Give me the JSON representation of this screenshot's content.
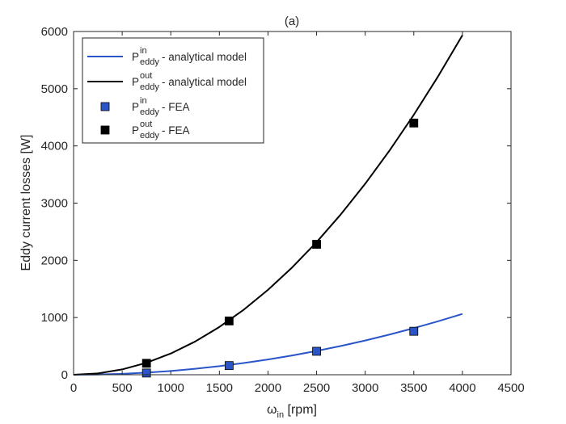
{
  "chart_data": {
    "type": "line",
    "title": "(a)",
    "xlabel": {
      "main": "ω",
      "sub": "in",
      "suffix": " [rpm]"
    },
    "ylabel": "Eddy current losses [W]",
    "xlim": [
      0,
      4500
    ],
    "ylim": [
      0,
      6000
    ],
    "xticks": [
      0,
      500,
      1000,
      1500,
      2000,
      2500,
      3000,
      3500,
      4000,
      4500
    ],
    "yticks": [
      0,
      1000,
      2000,
      3000,
      4000,
      5000,
      6000
    ],
    "xtick_labels": [
      "0",
      "500",
      "1000",
      "1500",
      "2000",
      "2500",
      "3000",
      "3500",
      "4000",
      "4500"
    ],
    "ytick_labels": [
      "0",
      "1000",
      "2000",
      "3000",
      "4000",
      "5000",
      "6000"
    ],
    "grid": false,
    "legend_position": "top-left",
    "series": [
      {
        "name": {
          "main": "P",
          "sup": "in",
          "sub": "eddy",
          "suffix": " - analytical model"
        },
        "kind": "line",
        "color": "#2a55c9",
        "x": [
          0,
          250,
          500,
          750,
          1000,
          1250,
          1500,
          1750,
          2000,
          2250,
          2500,
          2750,
          3000,
          3250,
          3500,
          3750,
          4000
        ],
        "y": [
          0,
          4,
          16,
          37,
          66,
          104,
          150,
          204,
          266,
          337,
          416,
          503,
          598,
          702,
          814,
          934,
          1063
        ]
      },
      {
        "name": {
          "main": "P",
          "sup": "out",
          "sub": "eddy",
          "suffix": " - analytical model"
        },
        "kind": "line",
        "color": "#000000",
        "x": [
          0,
          250,
          500,
          750,
          1000,
          1250,
          1500,
          1750,
          2000,
          2250,
          2500,
          2750,
          3000,
          3250,
          3500,
          3750,
          4000
        ],
        "y": [
          0,
          23,
          93,
          209,
          371,
          580,
          835,
          1136,
          1484,
          1878,
          2318,
          2805,
          3338,
          3918,
          4544,
          5216,
          5935
        ]
      },
      {
        "name": {
          "main": "P",
          "sup": "in",
          "sub": "eddy",
          "suffix": " - FEA"
        },
        "kind": "marker",
        "color": "#2a55c9",
        "x": [
          750,
          1600,
          2500,
          3500
        ],
        "y": [
          30,
          160,
          410,
          760
        ]
      },
      {
        "name": {
          "main": "P",
          "sup": "out",
          "sub": "eddy",
          "suffix": " - FEA"
        },
        "kind": "marker",
        "color": "#000000",
        "x": [
          750,
          1600,
          2500,
          3500
        ],
        "y": [
          200,
          940,
          2280,
          4400
        ]
      }
    ]
  }
}
